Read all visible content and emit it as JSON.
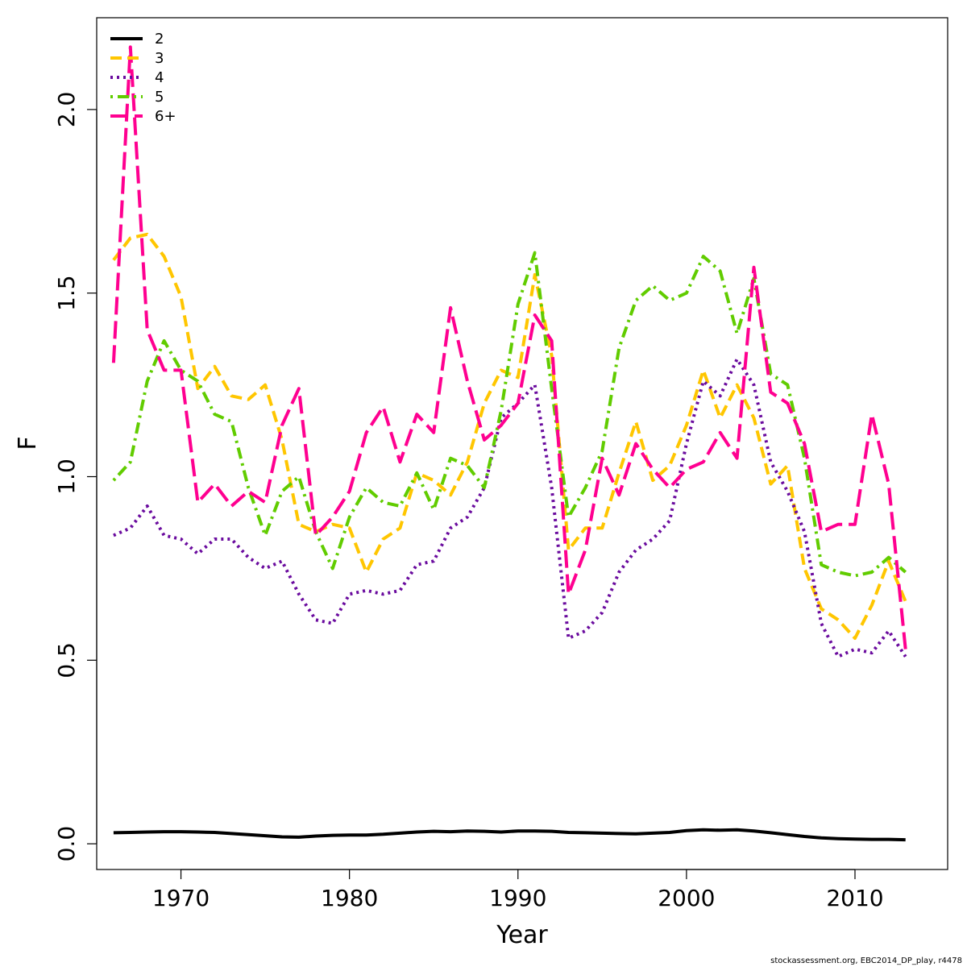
{
  "chart_data": {
    "type": "line",
    "title": "",
    "xlabel": "Year",
    "ylabel": "F",
    "xlim": [
      1965,
      2015.5
    ],
    "ylim": [
      -0.07,
      2.25
    ],
    "xticks": [
      1970,
      1980,
      1990,
      2000,
      2010
    ],
    "yticks": [
      0.0,
      0.5,
      1.0,
      1.5,
      2.0
    ],
    "ytick_labels": [
      "0.0",
      "0.5",
      "1.0",
      "1.5",
      "2.0"
    ],
    "legend_position": "top-left",
    "grid": false,
    "x": [
      1966,
      1967,
      1968,
      1969,
      1970,
      1971,
      1972,
      1973,
      1974,
      1975,
      1976,
      1977,
      1978,
      1979,
      1980,
      1981,
      1982,
      1983,
      1984,
      1985,
      1986,
      1987,
      1988,
      1989,
      1990,
      1991,
      1992,
      1993,
      1994,
      1995,
      1996,
      1997,
      1998,
      1999,
      2000,
      2001,
      2002,
      2003,
      2004,
      2005,
      2006,
      2007,
      2008,
      2009,
      2010,
      2011,
      2012,
      2013
    ],
    "series": [
      {
        "name": "2",
        "color": "#000000",
        "dash": "solid",
        "values": [
          0.03,
          0.031,
          0.032,
          0.033,
          0.033,
          0.032,
          0.031,
          0.028,
          0.025,
          0.022,
          0.019,
          0.018,
          0.021,
          0.023,
          0.024,
          0.024,
          0.026,
          0.029,
          0.032,
          0.034,
          0.033,
          0.035,
          0.034,
          0.032,
          0.035,
          0.035,
          0.034,
          0.031,
          0.03,
          0.029,
          0.028,
          0.027,
          0.029,
          0.031,
          0.036,
          0.038,
          0.037,
          0.038,
          0.035,
          0.03,
          0.025,
          0.02,
          0.016,
          0.014,
          0.013,
          0.012,
          0.012,
          0.011
        ]
      },
      {
        "name": "3",
        "color": "#ffc600",
        "dash": "dashed",
        "values": [
          1.59,
          1.65,
          1.66,
          1.6,
          1.49,
          1.24,
          1.3,
          1.22,
          1.21,
          1.25,
          1.1,
          0.87,
          0.85,
          0.87,
          0.86,
          0.74,
          0.83,
          0.86,
          1.01,
          0.99,
          0.95,
          1.04,
          1.2,
          1.29,
          1.27,
          1.55,
          1.33,
          0.8,
          0.86,
          0.86,
          1.01,
          1.15,
          0.99,
          1.03,
          1.14,
          1.29,
          1.16,
          1.25,
          1.16,
          0.98,
          1.03,
          0.75,
          0.64,
          0.61,
          0.56,
          0.65,
          0.77,
          0.66
        ]
      },
      {
        "name": "4",
        "color": "#6a0b9e",
        "dash": "dotted",
        "values": [
          0.84,
          0.86,
          0.92,
          0.84,
          0.83,
          0.79,
          0.83,
          0.83,
          0.78,
          0.75,
          0.77,
          0.68,
          0.61,
          0.6,
          0.68,
          0.69,
          0.68,
          0.69,
          0.76,
          0.77,
          0.86,
          0.89,
          0.97,
          1.16,
          1.2,
          1.25,
          0.97,
          0.56,
          0.58,
          0.63,
          0.74,
          0.8,
          0.83,
          0.88,
          1.09,
          1.26,
          1.22,
          1.32,
          1.25,
          1.04,
          0.96,
          0.85,
          0.6,
          0.51,
          0.53,
          0.52,
          0.58,
          0.51
        ]
      },
      {
        "name": "5",
        "color": "#61cc00",
        "dash": "dashdot",
        "values": [
          0.99,
          1.04,
          1.26,
          1.37,
          1.29,
          1.26,
          1.17,
          1.15,
          0.97,
          0.84,
          0.96,
          1.0,
          0.85,
          0.75,
          0.89,
          0.97,
          0.93,
          0.92,
          1.01,
          0.91,
          1.05,
          1.03,
          0.97,
          1.18,
          1.47,
          1.61,
          1.24,
          0.89,
          0.97,
          1.07,
          1.35,
          1.48,
          1.52,
          1.48,
          1.5,
          1.6,
          1.56,
          1.39,
          1.54,
          1.28,
          1.25,
          1.05,
          0.76,
          0.74,
          0.73,
          0.74,
          0.78,
          0.74
        ]
      },
      {
        "name": "6+",
        "color": "#ff0090",
        "dash": "longdash",
        "values": [
          1.31,
          2.17,
          1.4,
          1.29,
          1.29,
          0.93,
          0.98,
          0.92,
          0.96,
          0.93,
          1.14,
          1.24,
          0.84,
          0.89,
          0.96,
          1.12,
          1.19,
          1.04,
          1.17,
          1.12,
          1.46,
          1.26,
          1.1,
          1.14,
          1.2,
          1.44,
          1.37,
          0.68,
          0.8,
          1.05,
          0.95,
          1.09,
          1.02,
          0.97,
          1.02,
          1.04,
          1.12,
          1.05,
          1.57,
          1.23,
          1.2,
          1.09,
          0.85,
          0.87,
          0.87,
          1.17,
          0.98,
          0.53
        ]
      }
    ]
  },
  "credit": "stockassessment.org, EBC2014_DP_play, r4478"
}
